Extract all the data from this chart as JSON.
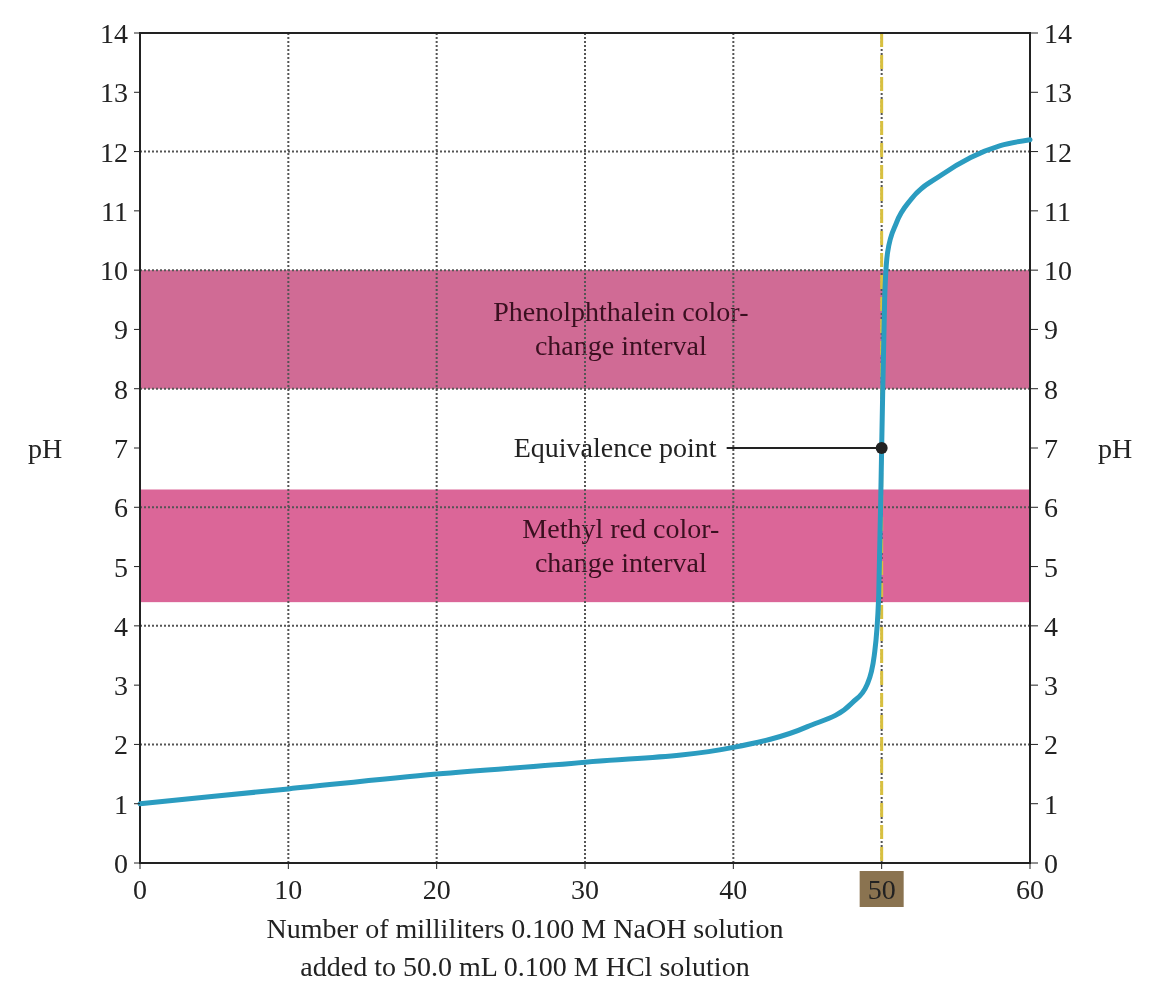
{
  "chart_data": {
    "type": "line",
    "xlabel": "Number of milliliters 0.100 M NaOH solution\nadded to 50.0 mL 0.100 M HCl solution",
    "ylabel": "pH",
    "y2label": "pH",
    "x": [
      0,
      10,
      20,
      30,
      40,
      45,
      48,
      49,
      49.5,
      49.8,
      50,
      50.2,
      50.4,
      51,
      52,
      54,
      56,
      58,
      60
    ],
    "series": [
      {
        "color": "#2b9cc0",
        "values": [
          1.0,
          1.25,
          1.5,
          1.7,
          1.95,
          2.3,
          2.7,
          3.0,
          3.5,
          4.5,
          7,
          9.5,
          10.3,
          10.8,
          11.2,
          11.6,
          11.9,
          12.1,
          12.2
        ]
      }
    ],
    "xlim": [
      0,
      60
    ],
    "xticks": [
      0,
      10,
      20,
      30,
      40,
      50,
      60
    ],
    "ylim": [
      0,
      14
    ],
    "yticks": [
      0,
      1,
      2,
      3,
      4,
      5,
      6,
      7,
      8,
      9,
      10,
      11,
      12,
      13,
      14
    ],
    "y2lim": [
      0,
      14
    ],
    "y2ticks": [
      0,
      1,
      2,
      3,
      4,
      5,
      6,
      7,
      8,
      9,
      10,
      11,
      12,
      13,
      14
    ],
    "bands": [
      {
        "axis": "y",
        "from": 8,
        "to": 10,
        "label": "Phenolphthalein color-\nchange interval",
        "color": "#c4467a"
      },
      {
        "axis": "y",
        "from": 4.4,
        "to": 6.3,
        "label": "Methyl red color-\nchange interval",
        "color": "#d2407e"
      }
    ],
    "ref_lines": [
      {
        "axis": "x",
        "value": 50,
        "color": "#d8c040",
        "line_style": "dashed"
      }
    ],
    "annotations": [
      {
        "text": "Equivalence point",
        "x": 50,
        "y": 7
      }
    ],
    "grid": true,
    "line_style": "solid"
  }
}
